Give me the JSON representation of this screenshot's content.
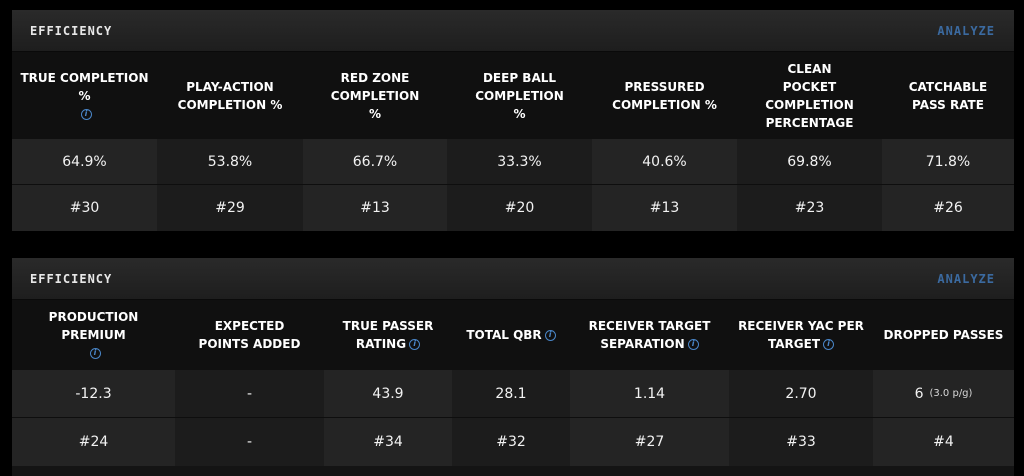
{
  "section1": {
    "title": "EFFICIENCY",
    "link": "ANALYZE",
    "columns": [
      {
        "header": "TRUE COMPLETION %",
        "info": true,
        "value": "64.9%",
        "rank": "#30"
      },
      {
        "header": "PLAY-ACTION COMPLETION %",
        "info": false,
        "value": "53.8%",
        "rank": "#29"
      },
      {
        "header": "RED ZONE COMPLETION %",
        "info": false,
        "value": "66.7%",
        "rank": "#13"
      },
      {
        "header": "DEEP BALL COMPLETION %",
        "info": false,
        "value": "33.3%",
        "rank": "#20"
      },
      {
        "header": "PRESSURED COMPLETION %",
        "info": false,
        "value": "40.6%",
        "rank": "#13"
      },
      {
        "header": "CLEAN POCKET COMPLETION PERCENTAGE",
        "info": false,
        "value": "69.8%",
        "rank": "#23"
      },
      {
        "header": "CATCHABLE PASS RATE",
        "info": false,
        "value": "71.8%",
        "rank": "#26"
      }
    ]
  },
  "section2": {
    "title": "EFFICIENCY",
    "link": "ANALYZE",
    "columns": [
      {
        "header": "PRODUCTION PREMIUM",
        "info": true,
        "value": "-12.3",
        "rank": "#24"
      },
      {
        "header": "EXPECTED POINTS ADDED",
        "info": false,
        "value": "-",
        "rank": "-"
      },
      {
        "header": "TRUE PASSER RATING",
        "info": true,
        "value": "43.9",
        "rank": "#34"
      },
      {
        "header": "TOTAL QBR",
        "info": true,
        "value": "28.1",
        "rank": "#32"
      },
      {
        "header": "RECEIVER TARGET SEPARATION",
        "info": true,
        "value": "1.14",
        "rank": "#27"
      },
      {
        "header": "RECEIVER YAC PER TARGET",
        "info": true,
        "value": "2.70",
        "rank": "#33"
      },
      {
        "header": "DROPPED PASSES",
        "info": false,
        "value": "6",
        "value_sub": "(3.0 p/g)",
        "rank": "#4"
      }
    ]
  }
}
